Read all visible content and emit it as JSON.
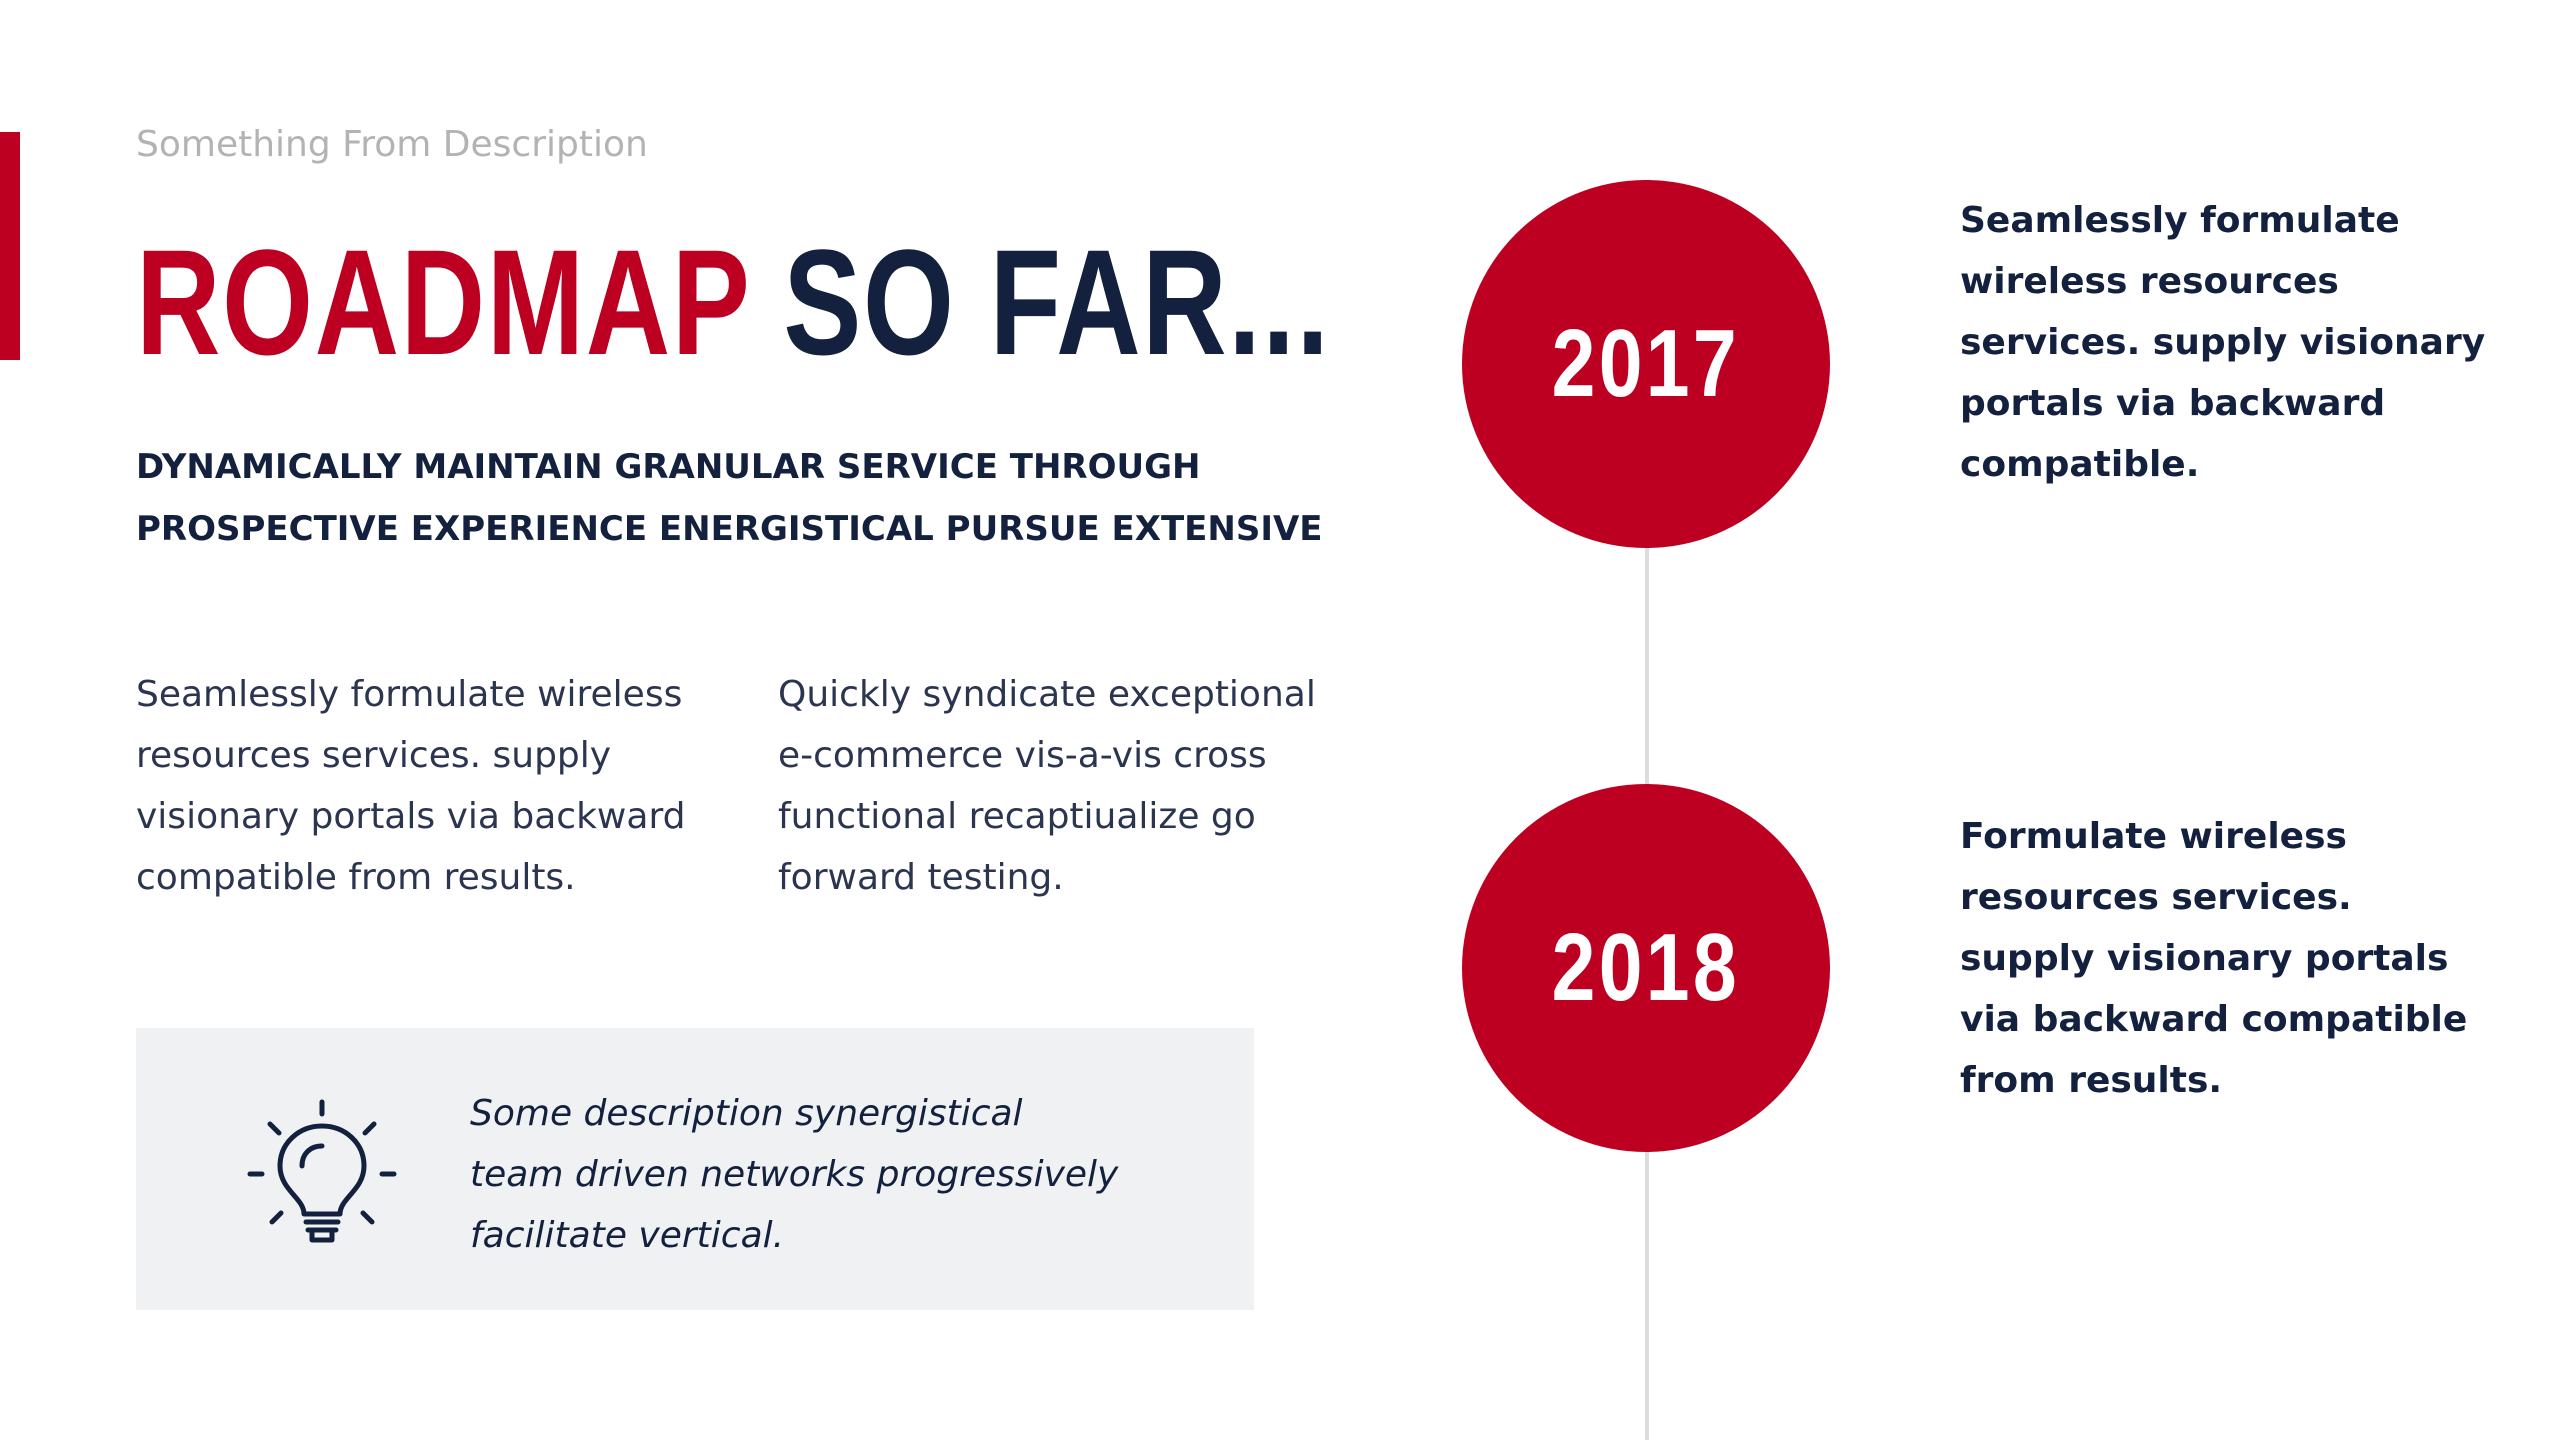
{
  "subtitle": "Something From Description",
  "title": {
    "part1": "ROADMAP",
    "part2": "SO FAR..."
  },
  "lead": {
    "line1": "DYNAMICALLY MAINTAIN GRANULAR SERVICE THROUGH",
    "line2": "PROSPECTIVE EXPERIENCE ENERGISTICAL PURSUE EXTENSIVE"
  },
  "columns": {
    "left": [
      "Seamlessly formulate wireless",
      "resources services. supply",
      "visionary portals via backward",
      "compatible from results."
    ],
    "right": [
      "Quickly syndicate exceptional",
      "e-commerce vis-a-vis cross",
      "functional recaptiualize go",
      "forward testing."
    ]
  },
  "tip": {
    "icon": "lightbulb-icon",
    "lines": [
      "Some description synergistical",
      "team driven networks progressively",
      "facilitate vertical."
    ]
  },
  "timeline": [
    {
      "year": "2017",
      "lines": [
        "Seamlessly formulate",
        "wireless resources",
        "services. supply visionary",
        "portals via backward",
        "compatible."
      ]
    },
    {
      "year": "2018",
      "lines": [
        "Formulate wireless",
        "resources services.",
        "supply visionary portals",
        "via backward compatible",
        "from results."
      ]
    }
  ],
  "colors": {
    "accent": "#bd0022",
    "navy": "#13213f",
    "muted": "#b3b3b3",
    "panel": "#f0f1f2",
    "line": "#dcdcdc"
  }
}
